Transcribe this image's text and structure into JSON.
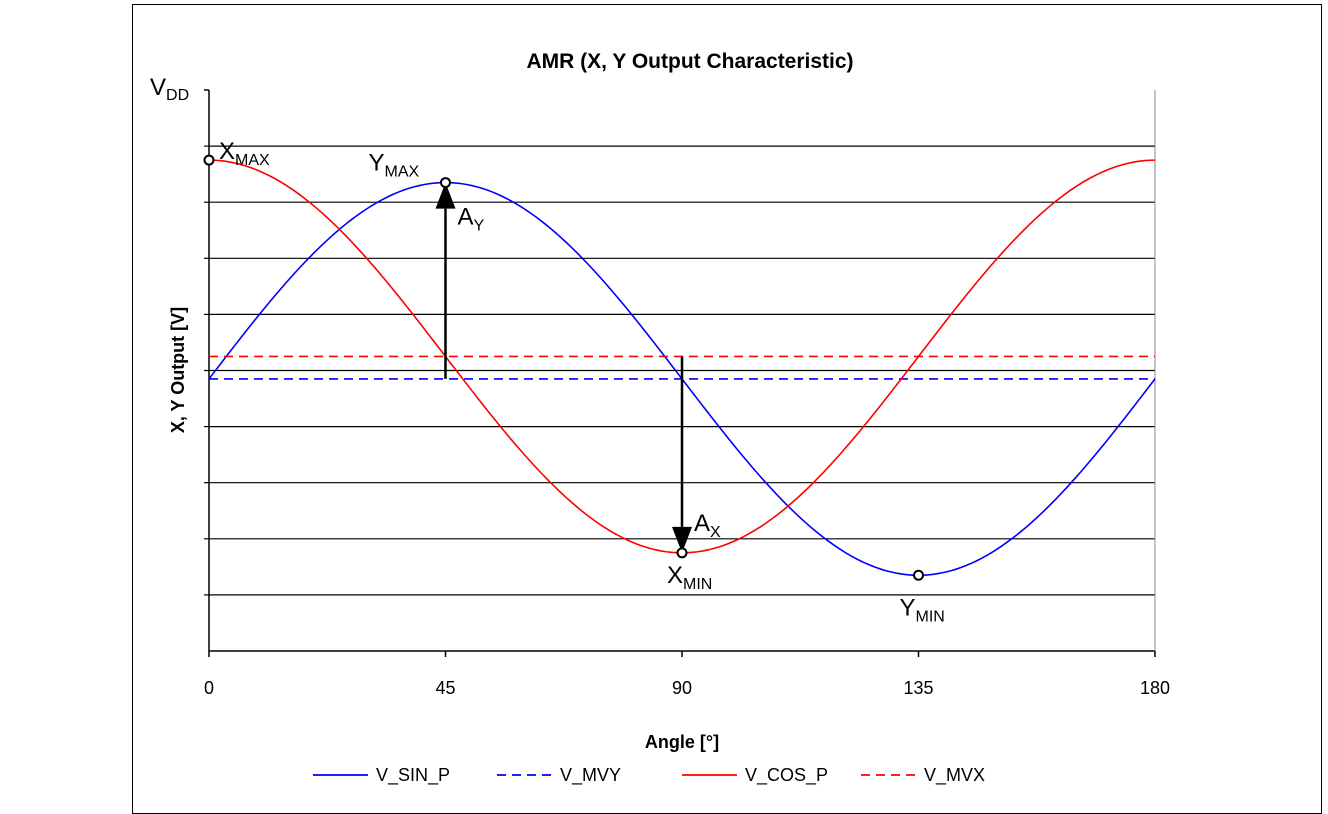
{
  "chart_data": {
    "type": "line",
    "title": "AMR (X, Y Output Characteristic)",
    "xlabel": "Angle [°]",
    "ylabel": "X, Y Output [V]",
    "xlim": [
      0,
      180
    ],
    "x_ticks": [
      "0",
      "45",
      "90",
      "135",
      "180"
    ],
    "ylim": [
      0,
      10
    ],
    "y_top_label": {
      "main": "V",
      "sub": "DD"
    },
    "grid": {
      "horizontal": true,
      "vertical": false,
      "color": "#000000"
    },
    "legend_position": "bottom",
    "series": [
      {
        "name": "V_SIN_P",
        "color": "#0000ff",
        "style": "solid",
        "function": "sin",
        "offset": 4.85,
        "amplitude": 3.5
      },
      {
        "name": "V_MVY",
        "color": "#0000ff",
        "style": "dashed",
        "constant": 4.85
      },
      {
        "name": "V_COS_P",
        "color": "#ff0000",
        "style": "solid",
        "function": "cos",
        "offset": 5.25,
        "amplitude": 3.5
      },
      {
        "name": "V_MVX",
        "color": "#ff0000",
        "style": "dashed",
        "constant": 5.25
      }
    ],
    "annotations": [
      {
        "main": "X",
        "sub": "MAX",
        "x": 0,
        "y": 8.75
      },
      {
        "main": "Y",
        "sub": "MAX",
        "x": 45,
        "y": 8.35
      },
      {
        "main": "X",
        "sub": "MIN",
        "x": 90,
        "y": 1.75
      },
      {
        "main": "Y",
        "sub": "MIN",
        "x": 135,
        "y": 1.35
      }
    ],
    "arrows": [
      {
        "label_main": "A",
        "label_sub": "Y",
        "x": 45,
        "from": 4.85,
        "to": 8.35
      },
      {
        "label_main": "A",
        "label_sub": "X",
        "x": 90,
        "from": 5.25,
        "to": 1.75
      }
    ]
  }
}
